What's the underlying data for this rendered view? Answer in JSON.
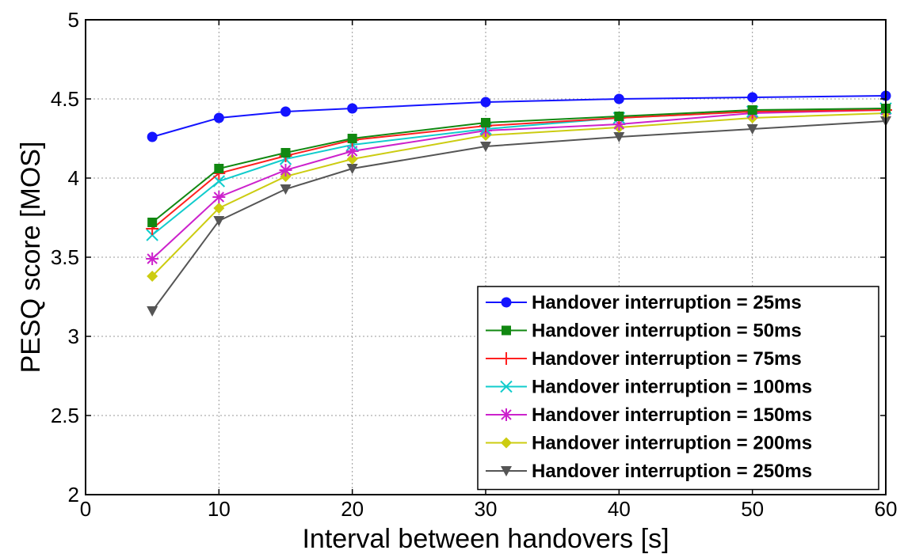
{
  "chart_data": {
    "type": "line",
    "title": "",
    "xlabel": "Interval between handovers [s]",
    "ylabel": "PESQ score [MOS]",
    "xlim": [
      0,
      60
    ],
    "ylim": [
      2,
      5
    ],
    "xticks": [
      0,
      10,
      20,
      30,
      40,
      50,
      60
    ],
    "yticks": [
      2,
      2.5,
      3,
      3.5,
      4,
      4.5,
      5
    ],
    "xtick_labels": [
      "0",
      "10",
      "20",
      "30",
      "40",
      "50",
      "60"
    ],
    "ytick_labels": [
      "2",
      "2.5",
      "3",
      "3.5",
      "4",
      "4.5",
      "5"
    ],
    "grid": true,
    "legend_position": "bottom-right",
    "x": [
      5,
      10,
      15,
      20,
      30,
      40,
      50,
      60
    ],
    "series": [
      {
        "name": "Handover interruption = 25ms",
        "marker": "circle",
        "color": "#1414ff",
        "values": [
          4.26,
          4.38,
          4.42,
          4.44,
          4.48,
          4.5,
          4.51,
          4.52
        ]
      },
      {
        "name": "Handover interruption = 50ms",
        "marker": "square",
        "color": "#118811",
        "values": [
          3.72,
          4.06,
          4.16,
          4.25,
          4.35,
          4.39,
          4.43,
          4.44
        ]
      },
      {
        "name": "Handover interruption = 75ms",
        "marker": "plus",
        "color": "#ff2020",
        "values": [
          3.68,
          4.03,
          4.14,
          4.24,
          4.33,
          4.38,
          4.42,
          4.43
        ]
      },
      {
        "name": "Handover interruption = 100ms",
        "marker": "x",
        "color": "#11cccc",
        "values": [
          3.64,
          3.98,
          4.12,
          4.21,
          4.31,
          4.38,
          4.42,
          4.44
        ]
      },
      {
        "name": "Handover interruption = 150ms",
        "marker": "star",
        "color": "#cc22cc",
        "values": [
          3.49,
          3.88,
          4.05,
          4.17,
          4.3,
          4.34,
          4.41,
          4.43
        ]
      },
      {
        "name": "Handover interruption = 200ms",
        "marker": "diamond",
        "color": "#cccc11",
        "values": [
          3.38,
          3.81,
          4.01,
          4.12,
          4.27,
          4.32,
          4.38,
          4.41
        ]
      },
      {
        "name": "Handover interruption = 250ms",
        "marker": "triangle-down",
        "color": "#555555",
        "values": [
          3.16,
          3.73,
          3.93,
          4.06,
          4.2,
          4.26,
          4.31,
          4.36
        ]
      }
    ]
  }
}
